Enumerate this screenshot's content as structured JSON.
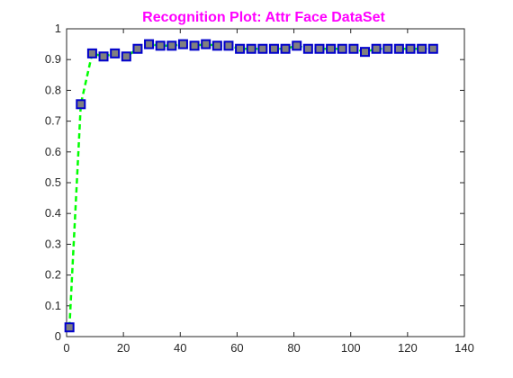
{
  "chart_data": {
    "type": "line",
    "title": "Recognition Plot: Attr Face DataSet",
    "xlabel": "",
    "ylabel": "",
    "xlim": [
      0,
      140
    ],
    "ylim": [
      0,
      1
    ],
    "xticks": [
      0,
      20,
      40,
      60,
      80,
      100,
      120,
      140
    ],
    "yticks": [
      0,
      0.1,
      0.2,
      0.3,
      0.4,
      0.5,
      0.6,
      0.7,
      0.8,
      0.9,
      1
    ],
    "grid": false,
    "legend": "none",
    "series": [
      {
        "x": [
          1,
          5,
          9,
          13,
          17,
          21,
          25,
          29,
          33,
          37,
          41,
          45,
          49,
          53,
          57,
          61,
          65,
          69,
          73,
          77,
          81,
          85,
          89,
          93,
          97,
          101,
          105,
          109,
          113,
          117,
          121,
          125,
          129
        ],
        "y": [
          0.03,
          0.755,
          0.92,
          0.91,
          0.92,
          0.91,
          0.935,
          0.95,
          0.945,
          0.945,
          0.95,
          0.945,
          0.95,
          0.945,
          0.945,
          0.935,
          0.935,
          0.935,
          0.935,
          0.935,
          0.945,
          0.935,
          0.935,
          0.935,
          0.935,
          0.935,
          0.925,
          0.935,
          0.935,
          0.935,
          0.935,
          0.935,
          0.935
        ],
        "line_color": "#00ff00",
        "line_style": "dashed",
        "marker": "square",
        "marker_fill": "#808080",
        "marker_edge": "#0000cc"
      }
    ],
    "title_color": "#ff00ff",
    "axis_color": "#262626"
  }
}
